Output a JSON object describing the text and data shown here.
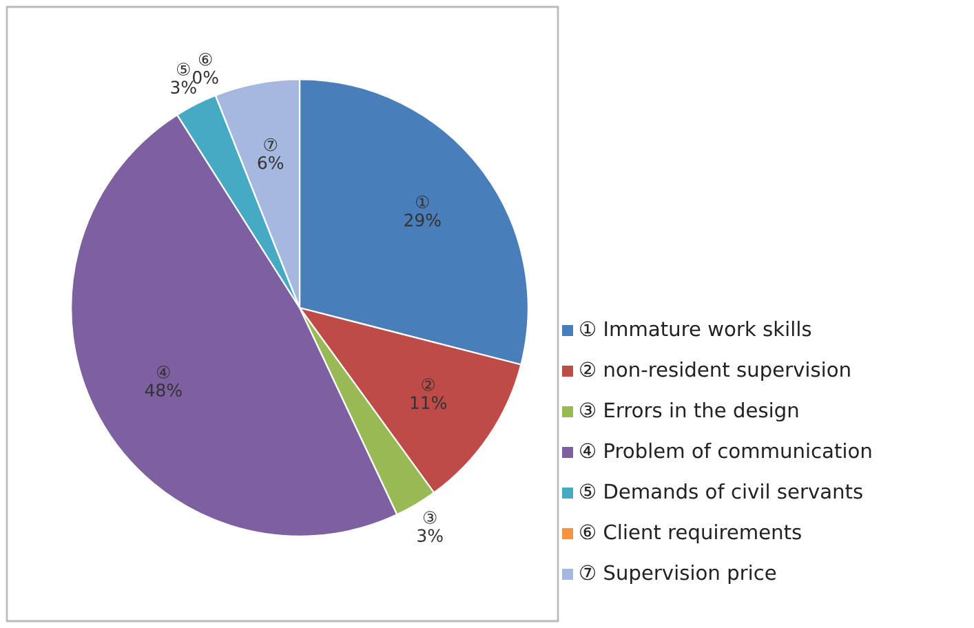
{
  "chart_data": {
    "type": "pie",
    "categories": [
      "① Immature work skills",
      "② non-resident supervision",
      "③ Errors in the design",
      "④ Problem of communication",
      "⑤ Demands of civil servants",
      "⑥ Client requirements",
      "⑦ Supervision price"
    ],
    "values": [
      29,
      11,
      3,
      48,
      3,
      0,
      6
    ],
    "value_labels": [
      "①\n29%",
      "②\n11%",
      "③\n3%",
      "④\n48%",
      "⑤\n3%",
      "⑥\n0%",
      "⑦\n6%"
    ],
    "colors": [
      "#4a7ebb",
      "#be4b48",
      "#98b954",
      "#7d60a0",
      "#46aac5",
      "#f69240",
      "#a5b9e0"
    ],
    "legend": "right"
  }
}
